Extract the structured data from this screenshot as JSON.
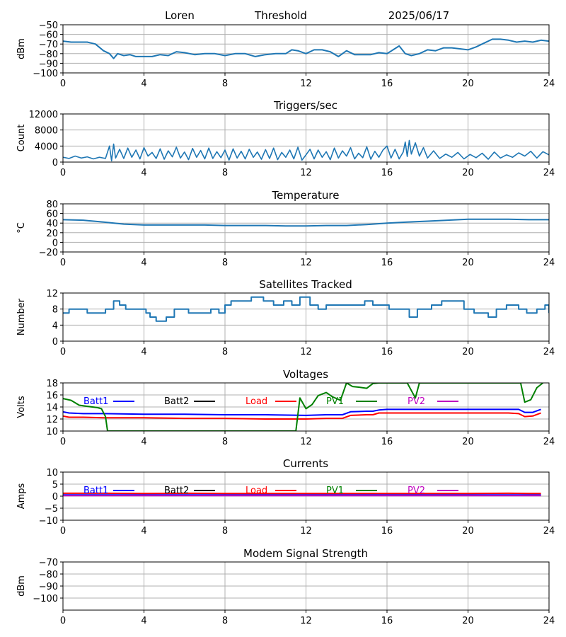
{
  "header": {
    "station": "Loren",
    "mode": "Threshold",
    "date": "2025/06/17"
  },
  "colors": {
    "series": "#1f77b4",
    "grid": "#b0b0b0",
    "axis": "#000000",
    "batt1": "#0000ff",
    "batt2": "#000000",
    "load": "#ff0000",
    "pv1": "#008000",
    "pv2": "#bf00bf"
  },
  "chart_data": [
    {
      "type": "line",
      "title": "",
      "ylabel": "dBm",
      "xlabel": "",
      "xlim": [
        0,
        24
      ],
      "ylim": [
        -100,
        -50
      ],
      "xticks": [
        "0",
        "4",
        "8",
        "12",
        "16",
        "20",
        "24"
      ],
      "yticks": [
        "−50",
        "−60",
        "−70",
        "−80",
        "−90",
        "−100"
      ],
      "ytick_values": [
        -50,
        -60,
        -70,
        -80,
        -90,
        -100
      ],
      "grid": true,
      "series": [
        {
          "color": "#1f77b4",
          "width": 2,
          "x": [
            0,
            0.4,
            0.8,
            1.2,
            1.6,
            2.0,
            2.3,
            2.5,
            2.7,
            3.0,
            3.3,
            3.6,
            4.0,
            4.4,
            4.8,
            5.2,
            5.6,
            6.0,
            6.5,
            7.0,
            7.5,
            8.0,
            8.5,
            9.0,
            9.5,
            10.0,
            10.5,
            11.0,
            11.3,
            11.6,
            12.0,
            12.4,
            12.8,
            13.2,
            13.6,
            14.0,
            14.4,
            14.8,
            15.2,
            15.6,
            16.0,
            16.3,
            16.6,
            16.9,
            17.2,
            17.6,
            18.0,
            18.4,
            18.8,
            19.2,
            19.6,
            20.0,
            20.4,
            20.8,
            21.2,
            21.6,
            22.0,
            22.4,
            22.8,
            23.2,
            23.6,
            24.0
          ],
          "y": [
            -67,
            -68,
            -68,
            -68,
            -70,
            -77,
            -80,
            -85,
            -80,
            -82,
            -81,
            -83,
            -83,
            -83,
            -81,
            -82,
            -78,
            -79,
            -81,
            -80,
            -80,
            -82,
            -80,
            -80,
            -83,
            -81,
            -80,
            -80,
            -76,
            -77,
            -80,
            -76,
            -76,
            -78,
            -83,
            -77,
            -81,
            -81,
            -81,
            -79,
            -80,
            -76,
            -72,
            -80,
            -82,
            -80,
            -76,
            -77,
            -74,
            -74,
            -75,
            -76,
            -73,
            -69,
            -65,
            -65,
            -66,
            -68,
            -67,
            -68,
            -66,
            -67
          ]
        }
      ]
    },
    {
      "type": "line",
      "title": "Triggers/sec",
      "ylabel": "Count",
      "xlabel": "",
      "xlim": [
        0,
        24
      ],
      "ylim": [
        0,
        12000
      ],
      "xticks": [
        "0",
        "4",
        "8",
        "12",
        "16",
        "20",
        "24"
      ],
      "yticks": [
        "0",
        "4000",
        "8000",
        "12000"
      ],
      "ytick_values": [
        0,
        4000,
        8000,
        12000
      ],
      "grid": true,
      "series": [
        {
          "color": "#1f77b4",
          "width": 2,
          "x": [
            0,
            0.3,
            0.6,
            0.9,
            1.2,
            1.5,
            1.8,
            2.1,
            2.3,
            2.4,
            2.5,
            2.6,
            2.8,
            3.0,
            3.2,
            3.4,
            3.6,
            3.8,
            4.0,
            4.2,
            4.4,
            4.6,
            4.8,
            5.0,
            5.2,
            5.4,
            5.6,
            5.8,
            6.0,
            6.2,
            6.4,
            6.6,
            6.8,
            7.0,
            7.2,
            7.4,
            7.6,
            7.8,
            8.0,
            8.2,
            8.4,
            8.6,
            8.8,
            9.0,
            9.2,
            9.4,
            9.6,
            9.8,
            10.0,
            10.2,
            10.4,
            10.6,
            10.8,
            11.0,
            11.2,
            11.4,
            11.6,
            11.8,
            12.0,
            12.2,
            12.4,
            12.6,
            12.8,
            13.0,
            13.2,
            13.4,
            13.6,
            13.8,
            14.0,
            14.2,
            14.4,
            14.6,
            14.8,
            15.0,
            15.2,
            15.4,
            15.6,
            15.8,
            16.0,
            16.2,
            16.4,
            16.6,
            16.8,
            16.9,
            17.0,
            17.1,
            17.2,
            17.4,
            17.6,
            17.8,
            18.0,
            18.3,
            18.6,
            18.9,
            19.2,
            19.5,
            19.8,
            20.1,
            20.4,
            20.7,
            21.0,
            21.3,
            21.6,
            21.9,
            22.2,
            22.5,
            22.8,
            23.1,
            23.4,
            23.7,
            24.0
          ],
          "y": [
            1200,
            900,
            1500,
            1000,
            1300,
            800,
            1200,
            900,
            4000,
            300,
            4500,
            1000,
            3200,
            900,
            3500,
            1200,
            3000,
            800,
            3600,
            1500,
            2400,
            900,
            3300,
            700,
            2800,
            1300,
            3700,
            1000,
            2500,
            600,
            3400,
            1200,
            2900,
            800,
            3500,
            900,
            2600,
            1100,
            3000,
            500,
            3300,
            1000,
            2700,
            800,
            3200,
            1200,
            2500,
            700,
            3100,
            900,
            3500,
            600,
            2400,
            1200,
            3000,
            800,
            3700,
            500,
            1800,
            3200,
            800,
            3000,
            1200,
            2600,
            600,
            3500,
            1000,
            2800,
            1500,
            3600,
            800,
            2200,
            1100,
            3800,
            700,
            2700,
            1200,
            3000,
            4000,
            1000,
            3200,
            800,
            2500,
            5000,
            1400,
            5400,
            2000,
            4800,
            1500,
            3600,
            1000,
            2800,
            900,
            2000,
            1200,
            2400,
            800,
            1900,
            1100,
            2200,
            700,
            2500,
            1000,
            1800,
            1200,
            2300,
            1500,
            2700,
            1000,
            2600,
            1800
          ],
          "thin": true
        }
      ]
    },
    {
      "type": "line",
      "title": "Temperature",
      "ylabel": "°C",
      "xlabel": "",
      "xlim": [
        0,
        24
      ],
      "ylim": [
        -20,
        80
      ],
      "xticks": [
        "0",
        "4",
        "8",
        "12",
        "16",
        "20",
        "24"
      ],
      "yticks": [
        "−20",
        "0",
        "20",
        "40",
        "60",
        "80"
      ],
      "ytick_values": [
        -20,
        0,
        20,
        40,
        60,
        80
      ],
      "grid": true,
      "series": [
        {
          "color": "#1f77b4",
          "width": 2,
          "x": [
            0,
            1,
            2,
            3,
            4,
            5,
            6,
            7,
            8,
            9,
            10,
            11,
            12,
            13,
            14,
            15,
            16,
            17,
            18,
            19,
            20,
            21,
            22,
            23,
            24
          ],
          "y": [
            47,
            46,
            42,
            38,
            36,
            36,
            36,
            36,
            35,
            35,
            35,
            34,
            34,
            35,
            35,
            37,
            40,
            42,
            44,
            46,
            48,
            48,
            48,
            47,
            47
          ]
        }
      ]
    },
    {
      "type": "line",
      "title": "Satellites Tracked",
      "ylabel": "Number",
      "xlabel": "",
      "xlim": [
        0,
        24
      ],
      "ylim": [
        0,
        12
      ],
      "xticks": [
        "0",
        "4",
        "8",
        "12",
        "16",
        "20",
        "24"
      ],
      "yticks": [
        "0",
        "4",
        "8",
        "12"
      ],
      "ytick_values": [
        0,
        4,
        8,
        12
      ],
      "grid": true,
      "step": true,
      "series": [
        {
          "color": "#1f77b4",
          "width": 2,
          "x": [
            0,
            0.3,
            0.9,
            1.2,
            2.1,
            2.5,
            2.8,
            3.1,
            3.7,
            4.1,
            4.3,
            4.6,
            5.1,
            5.5,
            6.2,
            6.9,
            7.3,
            7.7,
            8.0,
            8.3,
            8.7,
            9.3,
            9.9,
            10.4,
            10.9,
            11.3,
            11.7,
            12.2,
            12.6,
            13.0,
            13.9,
            14.2,
            14.9,
            15.3,
            16.1,
            16.8,
            17.1,
            17.5,
            18.2,
            18.7,
            19.3,
            19.8,
            20.3,
            21.0,
            21.4,
            21.9,
            22.5,
            22.9,
            23.4,
            23.8,
            24.0
          ],
          "y": [
            7,
            8,
            8,
            7,
            8,
            10,
            9,
            8,
            8,
            7,
            6,
            5,
            6,
            8,
            7,
            7,
            8,
            7,
            9,
            10,
            10,
            11,
            10,
            9,
            10,
            9,
            11,
            9,
            8,
            9,
            9,
            9,
            10,
            9,
            8,
            8,
            6,
            8,
            9,
            10,
            10,
            8,
            7,
            6,
            8,
            9,
            8,
            7,
            8,
            9,
            7
          ]
        }
      ]
    },
    {
      "type": "line",
      "title": "Voltages",
      "ylabel": "Volts",
      "xlabel": "",
      "xlim": [
        0,
        24
      ],
      "ylim": [
        10,
        18
      ],
      "xticks": [
        "0",
        "4",
        "8",
        "12",
        "16",
        "20",
        "24"
      ],
      "yticks": [
        "10",
        "12",
        "14",
        "16",
        "18"
      ],
      "ytick_values": [
        10,
        12,
        14,
        16,
        18
      ],
      "grid": true,
      "legend": [
        "Batt1",
        "Batt2",
        "Load",
        "PV1",
        "PV2"
      ],
      "series": [
        {
          "name": "Batt1",
          "color": "#0000ff",
          "width": 2,
          "x": [
            0,
            0.3,
            1,
            2,
            4,
            6,
            8,
            10,
            12,
            13,
            13.8,
            14.2,
            15,
            15.3,
            15.6,
            16,
            18,
            20,
            22,
            22.5,
            22.8,
            23.2,
            23.6
          ],
          "y": [
            13.2,
            13,
            12.9,
            12.9,
            12.8,
            12.8,
            12.7,
            12.7,
            12.6,
            12.7,
            12.7,
            13.2,
            13.3,
            13.3,
            13.5,
            13.6,
            13.6,
            13.6,
            13.6,
            13.6,
            13.1,
            13.1,
            13.6
          ]
        },
        {
          "name": "Batt2",
          "color": "#000000",
          "width": 2,
          "x": [],
          "y": []
        },
        {
          "name": "Load",
          "color": "#ff0000",
          "width": 2,
          "x": [
            0,
            0.3,
            1,
            2,
            4,
            6,
            8,
            10,
            12,
            13,
            13.8,
            14.2,
            15,
            15.3,
            15.6,
            16,
            18,
            20,
            22,
            22.5,
            22.8,
            23.2,
            23.6
          ],
          "y": [
            12.5,
            12.3,
            12.3,
            12.2,
            12.2,
            12.1,
            12.1,
            12,
            12,
            12.1,
            12.1,
            12.6,
            12.7,
            12.7,
            13,
            13,
            13,
            13,
            13,
            12.9,
            12.4,
            12.5,
            13
          ]
        },
        {
          "name": "PV1",
          "color": "#008000",
          "width": 2,
          "x": [
            0,
            0.4,
            0.8,
            1.2,
            1.7,
            1.9,
            2.1,
            2.2,
            11.5,
            11.7,
            12.0,
            12.3,
            12.6,
            13.0,
            13.3,
            13.7,
            14.0,
            14.3,
            14.6,
            15.0,
            15.3,
            15.6,
            17.0,
            17.4,
            17.6,
            22.6,
            22.8,
            23.1,
            23.4,
            23.7
          ],
          "y": [
            15.4,
            15.1,
            14.3,
            14.1,
            13.9,
            13.7,
            12.4,
            10,
            10,
            15.5,
            13.7,
            14.4,
            15.9,
            16.4,
            15.7,
            15.1,
            18,
            17.4,
            17.3,
            17.1,
            17.9,
            18,
            18,
            15.5,
            18,
            18,
            14.8,
            15.2,
            17.2,
            18
          ]
        },
        {
          "name": "PV2",
          "color": "#bf00bf",
          "width": 2,
          "x": [],
          "y": []
        }
      ]
    },
    {
      "type": "line",
      "title": "Currents",
      "ylabel": "Amps",
      "xlabel": "",
      "xlim": [
        0,
        24
      ],
      "ylim": [
        -10,
        10
      ],
      "xticks": [
        "0",
        "4",
        "8",
        "12",
        "16",
        "20",
        "24"
      ],
      "yticks": [
        "−10",
        "−5",
        "0",
        "5",
        "10"
      ],
      "ytick_values": [
        -10,
        -5,
        0,
        5,
        10
      ],
      "grid": true,
      "legend": [
        "Batt1",
        "Batt2",
        "Load",
        "PV1",
        "PV2"
      ],
      "series": [
        {
          "name": "PV1",
          "color": "#008000",
          "width": 2,
          "x": [
            0,
            23.6
          ],
          "y": [
            0.4,
            0.4
          ]
        },
        {
          "name": "Batt1",
          "color": "#0000ff",
          "width": 2,
          "x": [
            0,
            23.6
          ],
          "y": [
            0.5,
            0.5
          ]
        },
        {
          "name": "PV2",
          "color": "#bf00bf",
          "width": 2,
          "x": [
            0,
            23.6
          ],
          "y": [
            0.2,
            0.2
          ]
        },
        {
          "name": "Load",
          "color": "#ff0000",
          "width": 2,
          "x": [
            0,
            2,
            4,
            6,
            8,
            10,
            12,
            14,
            16,
            18,
            20,
            22,
            23,
            23.6
          ],
          "y": [
            1.2,
            1.2,
            1.1,
            1.2,
            1.1,
            1.1,
            1.1,
            1.1,
            1.1,
            1.1,
            1.1,
            1.2,
            1.1,
            1.1
          ]
        },
        {
          "name": "Batt2",
          "color": "#000000",
          "width": 2,
          "x": [],
          "y": []
        }
      ]
    },
    {
      "type": "line",
      "title": "Modem Signal Strength",
      "ylabel": "dBm",
      "xlabel": "",
      "xlim": [
        0,
        24
      ],
      "ylim": [
        -110,
        -70
      ],
      "xticks": [
        "0",
        "4",
        "8",
        "12",
        "16",
        "20",
        "24"
      ],
      "yticks": [
        "−70",
        "−80",
        "−90",
        "−100"
      ],
      "ytick_values": [
        -70,
        -80,
        -90,
        -100
      ],
      "grid": true,
      "series": []
    }
  ]
}
